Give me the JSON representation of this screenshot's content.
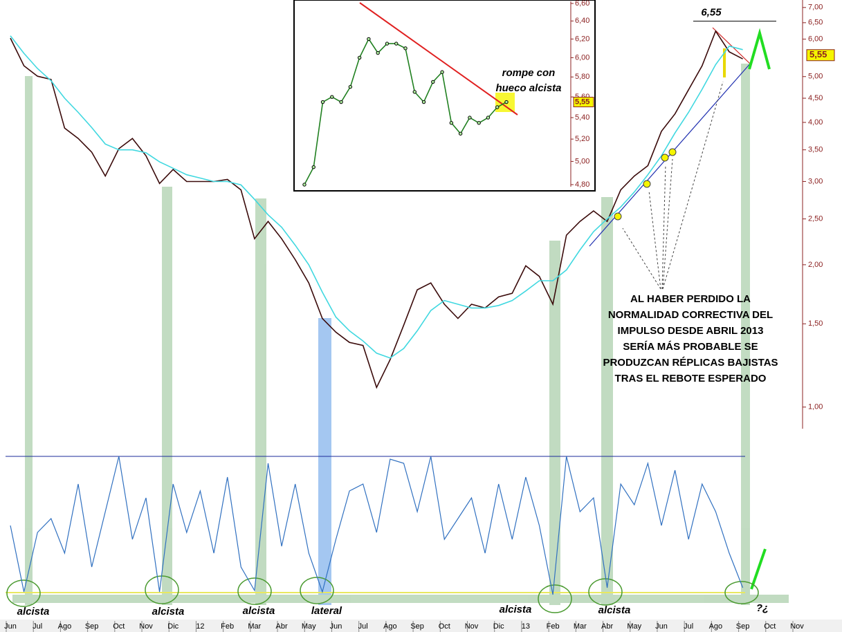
{
  "chart_data": [
    {
      "type": "line",
      "log_scale": true,
      "categories": [
        "Jun",
        null,
        "Jul",
        null,
        "Ago",
        null,
        "Sep",
        null,
        "Oct",
        null,
        "Nov",
        null,
        "Dic",
        null,
        "12",
        null,
        "Feb",
        null,
        "Mar",
        null,
        "Abr",
        null,
        "May",
        null,
        "Jun",
        null,
        "Jul",
        null,
        "Ago",
        null,
        "Sep",
        null,
        "Oct",
        null,
        "Nov",
        null,
        "Dic",
        null,
        "13",
        null,
        "Feb",
        null,
        "Mar",
        null,
        "Abr",
        null,
        "May",
        null,
        "Jun",
        null,
        "Jul",
        null,
        "Ago",
        null,
        "Sep",
        null,
        "Oct",
        null,
        "Nov",
        null
      ],
      "series": [
        {
          "color": "#3a0a0a",
          "values": [
            6.03,
            5.27,
            5.01,
            4.93,
            3.89,
            3.7,
            3.46,
            3.08,
            3.52,
            3.7,
            3.4,
            2.97,
            3.18,
            3.0,
            3.0,
            3.0,
            3.03,
            2.88,
            2.27,
            2.47,
            2.27,
            2.05,
            1.83,
            1.54,
            1.44,
            1.37,
            1.35,
            1.1,
            1.26,
            1.49,
            1.77,
            1.83,
            1.65,
            1.54,
            1.65,
            1.62,
            1.71,
            1.74,
            1.99,
            1.89,
            1.65,
            2.31,
            2.47,
            2.6,
            2.47,
            2.88,
            3.08,
            3.24,
            3.83,
            4.17,
            4.69,
            5.27,
            6.24,
            5.64,
            5.45,
            null,
            null,
            null,
            null,
            null
          ]
        },
        {
          "color": "#40d8e0",
          "values": [
            6.1,
            5.6,
            5.2,
            4.9,
            4.5,
            4.2,
            3.9,
            3.6,
            3.5,
            3.5,
            3.45,
            3.3,
            3.2,
            3.1,
            3.05,
            3.0,
            3.0,
            2.95,
            2.75,
            2.55,
            2.4,
            2.2,
            2.0,
            1.75,
            1.55,
            1.45,
            1.38,
            1.3,
            1.27,
            1.33,
            1.45,
            1.6,
            1.68,
            1.65,
            1.62,
            1.62,
            1.64,
            1.68,
            1.76,
            1.85,
            1.85,
            1.95,
            2.15,
            2.35,
            2.5,
            2.65,
            2.85,
            3.1,
            3.4,
            3.8,
            4.2,
            4.7,
            5.3,
            5.8,
            5.7,
            null,
            null,
            null,
            null,
            null
          ]
        }
      ],
      "ylim": [
        0.9,
        7.26
      ],
      "yticks": [
        {
          "value": 7,
          "label": "7,00"
        },
        {
          "value": 6.5,
          "label": "6,50"
        },
        {
          "value": 6,
          "label": "6,00"
        },
        {
          "value": 5,
          "label": "5,00"
        },
        {
          "value": 4.5,
          "label": "4,50"
        },
        {
          "value": 4,
          "label": "4,00"
        },
        {
          "value": 3.5,
          "label": "3,50"
        },
        {
          "value": 3,
          "label": "3,00"
        },
        {
          "value": 2.5,
          "label": "2,50"
        },
        {
          "value": 2,
          "label": "2,00"
        },
        {
          "value": 1.5,
          "label": "1,50"
        },
        {
          "value": 1,
          "label": "1,00"
        }
      ],
      "price_tag": {
        "value": 5.55,
        "label": "5,55"
      },
      "peak": {
        "value": 6.55,
        "label": "6,55"
      },
      "annotations": [
        "AL HABER PERDIDO LA",
        "NORMALIDAD CORRECTIVA DEL",
        "IMPULSO DESDE ABRIL 2013",
        "SERÍA MÁS PROBABLE SE",
        "PRODUZCAN RÉPLICAS BAJISTAS",
        "TRAS EL REBOTE ESPERADO",
        "alcista",
        "alcista",
        "alcista",
        "lateral",
        "alcista",
        "alcista",
        "?¿"
      ]
    },
    {
      "type": "line",
      "series": [
        {
          "color": "#3070c0",
          "values": [
            50,
            2,
            45,
            55,
            30,
            80,
            20,
            60,
            100,
            40,
            70,
            2,
            80,
            45,
            75,
            30,
            85,
            20,
            3,
            95,
            35,
            80,
            30,
            2,
            40,
            75,
            80,
            45,
            98,
            95,
            60,
            100,
            40,
            55,
            70,
            30,
            80,
            40,
            85,
            50,
            0,
            100,
            60,
            70,
            5,
            80,
            65,
            95,
            50,
            90,
            40,
            80,
            60,
            30,
            5,
            null,
            null,
            null,
            null,
            null
          ]
        }
      ],
      "ylim": [
        0,
        100
      ]
    },
    {
      "type": "line",
      "log_scale": true,
      "series": [
        {
          "color": "#208020",
          "values": [
            4.8,
            4.95,
            5.55,
            5.6,
            5.55,
            5.7,
            6.0,
            6.2,
            6.05,
            6.15,
            6.15,
            6.1,
            5.65,
            5.55,
            5.75,
            5.85,
            5.35,
            5.25,
            5.4,
            5.35,
            5.4,
            5.5,
            5.55
          ]
        }
      ],
      "ylim": [
        4.8,
        6.6
      ],
      "yticks": [
        {
          "value": 6.6,
          "label": "6,60"
        },
        {
          "value": 6.4,
          "label": "6,40"
        },
        {
          "value": 6.2,
          "label": "6,20"
        },
        {
          "value": 6,
          "label": "6,00"
        },
        {
          "value": 5.8,
          "label": "5,80"
        },
        {
          "value": 5.6,
          "label": "5,60"
        },
        {
          "value": 5.4,
          "label": "5,40"
        },
        {
          "value": 5.2,
          "label": "5,20"
        },
        {
          "value": 5,
          "label": "5,00"
        },
        {
          "value": 4.8,
          "label": "4,80"
        }
      ],
      "price_tag": {
        "value": 5.55,
        "label": "5,55"
      },
      "annotations": [
        "rompe con",
        "hueco alcista"
      ]
    }
  ]
}
